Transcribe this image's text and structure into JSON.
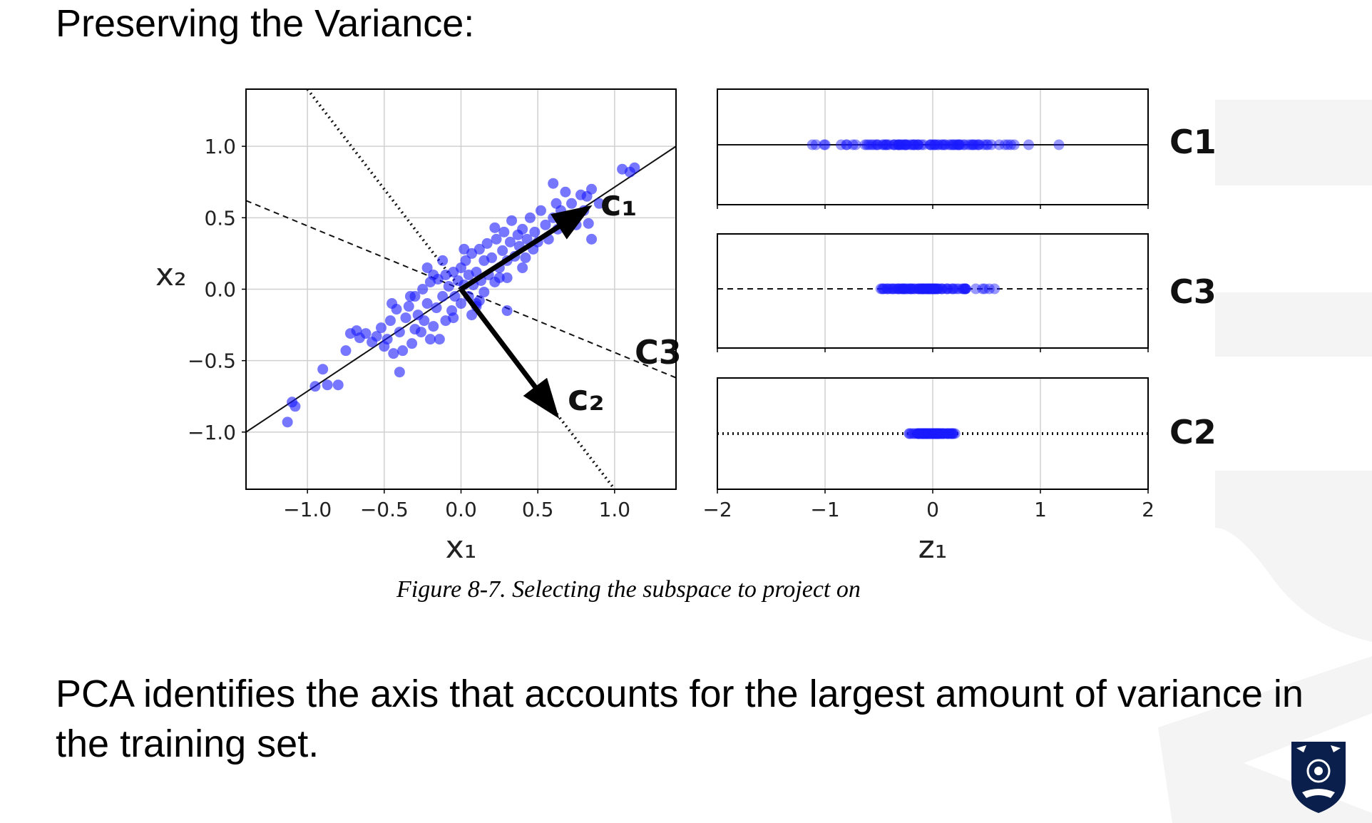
{
  "slide": {
    "title": "Preserving the Variance:",
    "body": "PCA identifies the axis that accounts for the largest amount of variance in the training set.",
    "caption": "Figure 8-7. Selecting the subspace to project on"
  },
  "colors": {
    "points": "#1a1aff",
    "background": "#ffffff",
    "watermark": "#f4f4f4",
    "crest": "#0b1f4d"
  },
  "chart_data": [
    {
      "type": "scatter",
      "xlabel": "x₁",
      "ylabel": "x₂",
      "xlim": [
        -1.4,
        1.4
      ],
      "ylim": [
        -1.4,
        1.4
      ],
      "x_ticks": [
        "−1.0",
        "−0.5",
        "0.0",
        "0.5",
        "1.0"
      ],
      "y_ticks": [
        "1.0",
        "0.5",
        "0.0",
        "−0.5",
        "−1.0"
      ],
      "grid": true,
      "lines": [
        {
          "style": "solid",
          "label": ""
        },
        {
          "style": "dashed",
          "label": "C3"
        },
        {
          "style": "dotted",
          "label": ""
        }
      ],
      "arrows": [
        {
          "label": "c₁",
          "from": [
            0,
            0
          ],
          "to": [
            0.8,
            0.55
          ]
        },
        {
          "label": "c₂",
          "from": [
            0,
            0
          ],
          "to": [
            0.6,
            -0.85
          ]
        }
      ],
      "points": [
        [
          -1.13,
          -0.93
        ],
        [
          -1.08,
          -0.82
        ],
        [
          -1.1,
          -0.79
        ],
        [
          -0.95,
          -0.68
        ],
        [
          -0.9,
          -0.56
        ],
        [
          -0.87,
          -0.67
        ],
        [
          -0.8,
          -0.67
        ],
        [
          -0.75,
          -0.43
        ],
        [
          -0.72,
          -0.31
        ],
        [
          -0.68,
          -0.29
        ],
        [
          -0.66,
          -0.34
        ],
        [
          -0.62,
          -0.31
        ],
        [
          -0.58,
          -0.37
        ],
        [
          -0.55,
          -0.33
        ],
        [
          -0.52,
          -0.27
        ],
        [
          -0.5,
          -0.4
        ],
        [
          -0.48,
          -0.35
        ],
        [
          -0.46,
          -0.22
        ],
        [
          -0.44,
          -0.45
        ],
        [
          -0.42,
          -0.14
        ],
        [
          -0.4,
          -0.3
        ],
        [
          -0.4,
          -0.58
        ],
        [
          -0.38,
          -0.43
        ],
        [
          -0.36,
          -0.2
        ],
        [
          -0.34,
          -0.12
        ],
        [
          -0.32,
          -0.38
        ],
        [
          -0.3,
          -0.05
        ],
        [
          -0.3,
          -0.28
        ],
        [
          -0.28,
          -0.18
        ],
        [
          -0.26,
          -0.3
        ],
        [
          -0.25,
          0.0
        ],
        [
          -0.24,
          -0.22
        ],
        [
          -0.22,
          -0.1
        ],
        [
          -0.2,
          -0.35
        ],
        [
          -0.2,
          0.05
        ],
        [
          -0.18,
          -0.26
        ],
        [
          -0.16,
          -0.13
        ],
        [
          -0.15,
          0.07
        ],
        [
          -0.14,
          -0.35
        ],
        [
          -0.12,
          -0.05
        ],
        [
          -0.1,
          -0.22
        ],
        [
          -0.1,
          0.1
        ],
        [
          -0.08,
          0.02
        ],
        [
          -0.06,
          -0.15
        ],
        [
          -0.05,
          0.12
        ],
        [
          -0.04,
          -0.05
        ],
        [
          -0.02,
          0.06
        ],
        [
          0.0,
          -0.1
        ],
        [
          0.0,
          0.15
        ],
        [
          0.02,
          0.03
        ],
        [
          0.03,
          0.2
        ],
        [
          0.05,
          -0.05
        ],
        [
          0.05,
          0.1
        ],
        [
          0.07,
          0.25
        ],
        [
          0.08,
          0.03
        ],
        [
          0.1,
          -0.1
        ],
        [
          0.1,
          0.12
        ],
        [
          0.12,
          0.28
        ],
        [
          0.13,
          0.06
        ],
        [
          0.15,
          0.2
        ],
        [
          0.15,
          -0.02
        ],
        [
          0.17,
          0.32
        ],
        [
          0.18,
          0.1
        ],
        [
          0.2,
          0.22
        ],
        [
          0.22,
          0.05
        ],
        [
          0.23,
          0.35
        ],
        [
          0.25,
          0.15
        ],
        [
          0.27,
          0.27
        ],
        [
          0.28,
          0.4
        ],
        [
          0.3,
          0.08
        ],
        [
          0.3,
          0.2
        ],
        [
          0.32,
          0.33
        ],
        [
          0.33,
          0.48
        ],
        [
          0.35,
          0.23
        ],
        [
          0.37,
          0.38
        ],
        [
          0.38,
          0.3
        ],
        [
          0.4,
          0.42
        ],
        [
          0.42,
          0.22
        ],
        [
          0.43,
          0.35
        ],
        [
          0.45,
          0.5
        ],
        [
          0.47,
          0.28
        ],
        [
          0.48,
          0.4
        ],
        [
          0.5,
          0.33
        ],
        [
          0.52,
          0.55
        ],
        [
          0.55,
          0.45
        ],
        [
          0.57,
          0.35
        ],
        [
          0.6,
          0.5
        ],
        [
          0.62,
          0.6
        ],
        [
          0.63,
          0.42
        ],
        [
          0.6,
          0.74
        ],
        [
          0.65,
          0.55
        ],
        [
          0.68,
          0.68
        ],
        [
          0.7,
          0.5
        ],
        [
          0.72,
          0.6
        ],
        [
          0.75,
          0.45
        ],
        [
          0.78,
          0.66
        ],
        [
          0.8,
          0.55
        ],
        [
          0.82,
          0.65
        ],
        [
          0.83,
          0.46
        ],
        [
          0.85,
          0.35
        ],
        [
          0.85,
          0.7
        ],
        [
          0.9,
          0.6
        ],
        [
          1.05,
          0.84
        ],
        [
          1.1,
          0.82
        ],
        [
          1.13,
          0.85
        ],
        [
          -0.18,
          0.1
        ],
        [
          -0.05,
          -0.2
        ],
        [
          0.07,
          -0.18
        ],
        [
          0.1,
          -0.12
        ],
        [
          0.3,
          -0.15
        ],
        [
          0.12,
          -0.08
        ],
        [
          -0.22,
          0.15
        ],
        [
          0.02,
          0.28
        ],
        [
          -0.12,
          0.2
        ],
        [
          0.22,
          0.43
        ],
        [
          0.4,
          0.15
        ],
        [
          0.25,
          0.08
        ],
        [
          -0.33,
          -0.05
        ],
        [
          -0.45,
          -0.1
        ]
      ]
    },
    {
      "type": "scatter",
      "xlabel": "z₁",
      "xlim": [
        -2,
        2
      ],
      "x_ticks": [
        "−2",
        "−1",
        "0",
        "1",
        "2"
      ],
      "grid": true,
      "panels": [
        {
          "label": "C1",
          "line_style": "solid",
          "spread": 1.4
        },
        {
          "label": "C3",
          "line_style": "dashed",
          "spread": 0.72
        },
        {
          "label": "C2",
          "line_style": "dotted",
          "spread": 0.3
        }
      ]
    }
  ]
}
